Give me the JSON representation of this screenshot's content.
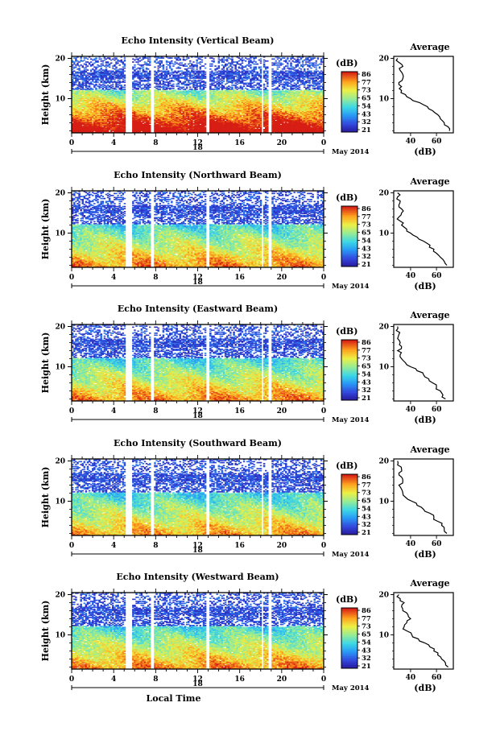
{
  "chart_data": [
    {
      "type": "heatmap",
      "title": "Echo Intensity (Vertical Beam)",
      "ylabel": "Height (km)",
      "yticks": [
        "20",
        "10"
      ],
      "xticks": [
        "0",
        "4",
        "8",
        "12",
        "16",
        "20",
        "0"
      ],
      "day_label": "18",
      "month_label": "May 2014",
      "xlim": [
        0,
        24
      ],
      "ylim": [
        1.5,
        20.5
      ],
      "colorbar": {
        "label": "(dB)",
        "ticks": [
          "86",
          "77",
          "73",
          "65",
          "54",
          "43",
          "32",
          "21"
        ]
      },
      "gaps": [
        [
          5.1,
          5.8
        ],
        [
          7.5,
          7.8
        ],
        [
          12.8,
          13.2
        ],
        [
          18.1,
          18.3
        ],
        [
          18.8,
          19.0
        ]
      ],
      "profile": {
        "title": "Average",
        "xlabel": "(dB)",
        "xticks": [
          "40",
          "60"
        ],
        "xlim": [
          27,
          73
        ],
        "height": [
          2,
          3,
          4,
          5,
          6,
          7,
          8,
          9,
          10,
          11,
          12,
          13,
          14,
          15,
          16,
          17,
          18,
          19,
          20
        ],
        "value": [
          70,
          69,
          66,
          63,
          61,
          57,
          53,
          47,
          40,
          36,
          33,
          33,
          31,
          34,
          34,
          32,
          34,
          31,
          30
        ]
      }
    },
    {
      "type": "heatmap",
      "title": "Echo Intensity (Northward Beam)",
      "ylabel": "Height (km)",
      "yticks": [
        "20",
        "10"
      ],
      "xticks": [
        "0",
        "4",
        "8",
        "12",
        "16",
        "20",
        "0"
      ],
      "day_label": "18",
      "month_label": "May 2014",
      "xlim": [
        0,
        24
      ],
      "ylim": [
        1.5,
        20.5
      ],
      "colorbar": {
        "label": "(dB)",
        "ticks": [
          "86",
          "77",
          "73",
          "65",
          "54",
          "43",
          "32",
          "21"
        ]
      },
      "gaps": [
        [
          5.1,
          5.8
        ],
        [
          7.5,
          7.8
        ],
        [
          12.8,
          13.2
        ],
        [
          18.1,
          18.3
        ],
        [
          18.8,
          19.0
        ]
      ],
      "profile": {
        "title": "Average",
        "xlabel": "(dB)",
        "xticks": [
          "40",
          "60"
        ],
        "xlim": [
          27,
          73
        ],
        "height": [
          2,
          3,
          4,
          5,
          6,
          7,
          8,
          9,
          10,
          11,
          12,
          13,
          14,
          15,
          16,
          17,
          18,
          19,
          20
        ],
        "value": [
          68,
          66,
          63,
          60,
          58,
          55,
          50,
          45,
          40,
          37,
          33,
          32,
          31,
          33,
          33,
          31,
          32,
          30,
          30
        ]
      }
    },
    {
      "type": "heatmap",
      "title": "Echo Intensity (Eastward Beam)",
      "ylabel": "Height (km)",
      "yticks": [
        "20",
        "10"
      ],
      "xticks": [
        "0",
        "4",
        "8",
        "12",
        "16",
        "20",
        "0"
      ],
      "day_label": "18",
      "month_label": "May 2014",
      "xlim": [
        0,
        24
      ],
      "ylim": [
        1.5,
        20.5
      ],
      "colorbar": {
        "label": "(dB)",
        "ticks": [
          "86",
          "77",
          "73",
          "65",
          "54",
          "43",
          "32",
          "21"
        ]
      },
      "gaps": [
        [
          5.1,
          5.8
        ],
        [
          7.5,
          7.8
        ],
        [
          12.8,
          13.2
        ],
        [
          18.1,
          18.3
        ],
        [
          18.8,
          19.0
        ]
      ],
      "profile": {
        "title": "Average",
        "xlabel": "(dB)",
        "xticks": [
          "40",
          "60"
        ],
        "xlim": [
          27,
          73
        ],
        "height": [
          2,
          3,
          4,
          5,
          6,
          7,
          8,
          9,
          10,
          11,
          12,
          13,
          14,
          15,
          16,
          17,
          18,
          19,
          20
        ],
        "value": [
          67,
          65,
          63,
          60,
          57,
          54,
          50,
          45,
          40,
          36,
          33,
          32,
          30,
          33,
          32,
          30,
          31,
          29,
          30
        ]
      }
    },
    {
      "type": "heatmap",
      "title": "Echo Intensity (Southward Beam)",
      "ylabel": "Height (km)",
      "yticks": [
        "20",
        "10"
      ],
      "xticks": [
        "0",
        "4",
        "8",
        "12",
        "16",
        "20",
        "0"
      ],
      "day_label": "18",
      "month_label": "May 2014",
      "xlim": [
        0,
        24
      ],
      "ylim": [
        1.5,
        20.5
      ],
      "colorbar": {
        "label": "(dB)",
        "ticks": [
          "86",
          "77",
          "73",
          "65",
          "54",
          "43",
          "32",
          "21"
        ]
      },
      "gaps": [
        [
          5.1,
          5.8
        ],
        [
          7.5,
          7.8
        ],
        [
          12.8,
          13.2
        ],
        [
          18.1,
          18.3
        ],
        [
          18.8,
          19.0
        ]
      ],
      "profile": {
        "title": "Average",
        "xlabel": "(dB)",
        "xticks": [
          "40",
          "60"
        ],
        "xlim": [
          27,
          73
        ],
        "height": [
          2,
          3,
          4,
          5,
          6,
          7,
          8,
          9,
          10,
          11,
          12,
          13,
          14,
          15,
          16,
          17,
          18,
          19,
          20
        ],
        "value": [
          68,
          66,
          64,
          61,
          58,
          55,
          50,
          45,
          41,
          36,
          34,
          33,
          31,
          34,
          33,
          31,
          33,
          30,
          30
        ]
      }
    },
    {
      "type": "heatmap",
      "title": "Echo Intensity (Westward Beam)",
      "ylabel": "Height (km)",
      "yticks": [
        "20",
        "10"
      ],
      "xticks": [
        "0",
        "4",
        "8",
        "12",
        "16",
        "20",
        "0"
      ],
      "day_label": "18",
      "month_label": "May 2014",
      "xlabel": "Local Time",
      "xlim": [
        0,
        24
      ],
      "ylim": [
        1.5,
        20.5
      ],
      "colorbar": {
        "label": "(dB)",
        "ticks": [
          "86",
          "77",
          "73",
          "65",
          "54",
          "43",
          "32",
          "21"
        ]
      },
      "gaps": [
        [
          5.1,
          5.8
        ],
        [
          7.5,
          7.8
        ],
        [
          12.8,
          13.2
        ],
        [
          18.1,
          18.3
        ],
        [
          18.8,
          19.0
        ]
      ],
      "profile": {
        "title": "Average",
        "xlabel": "(dB)",
        "xticks": [
          "40",
          "60"
        ],
        "xlim": [
          27,
          73
        ],
        "height": [
          2,
          3,
          4,
          5,
          6,
          7,
          8,
          9,
          10,
          11,
          12,
          13,
          14,
          15,
          16,
          17,
          18,
          19,
          20
        ],
        "value": [
          69,
          67,
          64,
          61,
          58,
          55,
          51,
          46,
          41,
          37,
          35,
          37,
          40,
          38,
          34,
          33,
          35,
          32,
          31
        ]
      }
    }
  ]
}
